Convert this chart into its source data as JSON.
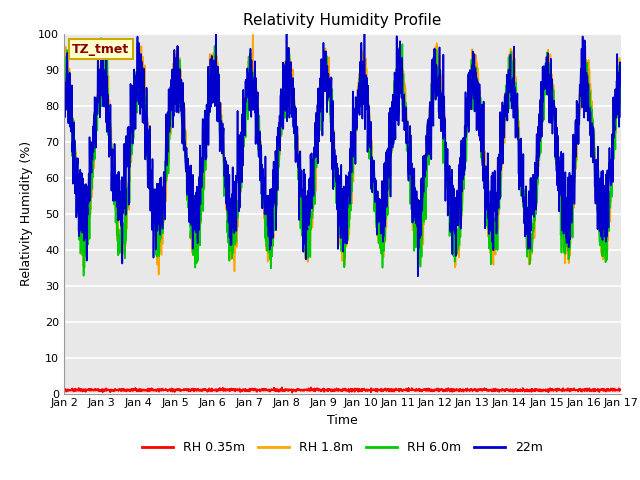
{
  "title": "Relativity Humidity Profile",
  "xlabel": "Time",
  "ylabel": "Relativity Humidity (%)",
  "annotation_text": "TZ_tmet",
  "annotation_color": "#8B0000",
  "annotation_bg": "#FFFFCC",
  "legend_labels": [
    "RH 0.35m",
    "RH 1.8m",
    "RH 6.0m",
    "22m"
  ],
  "line_colors": [
    "#FF0000",
    "#FFA500",
    "#00CC00",
    "#0000CD"
  ],
  "ylim": [
    0,
    100
  ],
  "yticks": [
    0,
    10,
    20,
    30,
    40,
    50,
    60,
    70,
    80,
    90,
    100
  ],
  "xtick_labels": [
    "Jan 2",
    "Jan 3",
    "Jan 4",
    "Jan 5",
    "Jan 6",
    "Jan 7",
    "Jan 8",
    "Jan 9",
    "Jan 10",
    "Jan 11",
    "Jan 12",
    "Jan 13",
    "Jan 14",
    "Jan 15",
    "Jan 16",
    "Jan 17"
  ],
  "bg_color": "#FFFFFF",
  "plot_bg": "#E8E8E8",
  "grid_color": "#FFFFFF",
  "title_fontsize": 11,
  "label_fontsize": 9,
  "tick_fontsize": 8,
  "line_width": 1.2,
  "n_days": 15,
  "samples_per_day": 144
}
